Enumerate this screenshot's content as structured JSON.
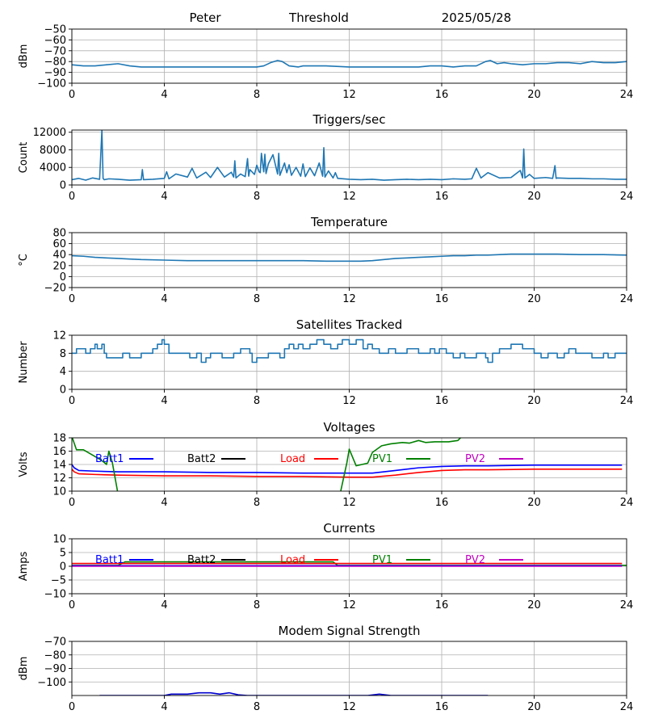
{
  "header": {
    "left": "Peter",
    "center": "Threshold",
    "right": "2025/05/28"
  },
  "chart_data": [
    {
      "id": "threshold",
      "type": "line",
      "title": "",
      "xlabel": "",
      "ylabel": "dBm",
      "xlim": [
        0,
        24
      ],
      "ylim": [
        -100,
        -50
      ],
      "xticks": [
        0,
        4,
        8,
        12,
        16,
        20,
        24
      ],
      "yticks": [
        -100,
        -90,
        -80,
        -70,
        -60,
        -50
      ],
      "ytick_labels": [
        "−100",
        "−90",
        "−80",
        "−70",
        "−60",
        "−50"
      ],
      "grid": true,
      "series": [
        {
          "color": "#1f77b4",
          "x": [
            0,
            0.5,
            1,
            1.5,
            2,
            2.5,
            3,
            4,
            5,
            6,
            7,
            8,
            8.3,
            8.6,
            8.9,
            9.1,
            9.4,
            9.8,
            10,
            11,
            12,
            13,
            14,
            15,
            15.5,
            16,
            16.5,
            17,
            17.5,
            17.9,
            18.1,
            18.4,
            18.7,
            19,
            19.5,
            20,
            20.5,
            21,
            21.5,
            22,
            22.5,
            23,
            23.5,
            24
          ],
          "y": [
            -83,
            -84,
            -84,
            -83,
            -82,
            -84,
            -85,
            -85,
            -85,
            -85,
            -85,
            -85,
            -84,
            -81,
            -79,
            -80,
            -84,
            -85,
            -84,
            -84,
            -85,
            -85,
            -85,
            -85,
            -84,
            -84,
            -85,
            -84,
            -84,
            -80,
            -79,
            -82,
            -81,
            -82,
            -83,
            -82,
            -82,
            -81,
            -81,
            -82,
            -80,
            -81,
            -81,
            -80
          ]
        }
      ]
    },
    {
      "id": "triggers",
      "type": "line",
      "title": "Triggers/sec",
      "xlabel": "",
      "ylabel": "Count",
      "xlim": [
        0,
        24
      ],
      "ylim": [
        0,
        12500
      ],
      "xticks": [
        0,
        4,
        8,
        12,
        16,
        20,
        24
      ],
      "yticks": [
        0,
        4000,
        8000,
        12000
      ],
      "ytick_labels": [
        "0",
        "4000",
        "8000",
        "12000"
      ],
      "grid": true,
      "series": [
        {
          "color": "#1f77b4",
          "x": [
            0,
            0.3,
            0.6,
            0.9,
            1.2,
            1.3,
            1.35,
            1.4,
            1.6,
            2,
            2.5,
            3,
            3.05,
            3.1,
            3.5,
            4,
            4.1,
            4.2,
            4.5,
            5,
            5.2,
            5.4,
            5.8,
            6,
            6.3,
            6.6,
            6.9,
            7,
            7.05,
            7.1,
            7.3,
            7.5,
            7.6,
            7.65,
            7.7,
            7.9,
            8,
            8.1,
            8.15,
            8.2,
            8.3,
            8.35,
            8.4,
            8.5,
            8.7,
            8.9,
            8.95,
            9.0,
            9.2,
            9.3,
            9.4,
            9.5,
            9.7,
            9.9,
            10,
            10.1,
            10.3,
            10.5,
            10.7,
            10.85,
            10.9,
            10.95,
            11.1,
            11.3,
            11.4,
            11.5,
            12,
            12.5,
            13,
            13.5,
            14,
            14.5,
            15,
            15.5,
            16,
            16.5,
            17,
            17.3,
            17.5,
            17.7,
            18,
            18.5,
            19,
            19.4,
            19.5,
            19.55,
            19.6,
            19.8,
            20,
            20.5,
            20.8,
            20.9,
            20.95,
            21,
            21.5,
            22,
            22.5,
            23,
            23.5,
            24
          ],
          "y": [
            1200,
            1500,
            1100,
            1600,
            1300,
            12500,
            1500,
            1200,
            1400,
            1300,
            1100,
            1200,
            3500,
            1200,
            1300,
            1500,
            3000,
            1400,
            2500,
            1800,
            3800,
            1600,
            2900,
            1700,
            4000,
            1800,
            2900,
            1800,
            5500,
            1600,
            2500,
            1900,
            6000,
            2000,
            3500,
            2400,
            4500,
            3000,
            2800,
            7200,
            3000,
            7000,
            2600,
            4800,
            6900,
            2500,
            7200,
            2200,
            5000,
            2800,
            4600,
            2200,
            4000,
            2000,
            4800,
            1900,
            3900,
            2100,
            5000,
            2000,
            8500,
            1800,
            3200,
            1600,
            2800,
            1500,
            1300,
            1200,
            1300,
            1100,
            1200,
            1300,
            1200,
            1300,
            1200,
            1400,
            1300,
            1400,
            3800,
            1600,
            2800,
            1600,
            1700,
            3300,
            1600,
            8200,
            1600,
            2400,
            1500,
            1700,
            1500,
            4400,
            1500,
            1600,
            1500,
            1500,
            1400,
            1400,
            1300,
            1300
          ]
        }
      ]
    },
    {
      "id": "temperature",
      "type": "line",
      "title": "Temperature",
      "xlabel": "",
      "ylabel": "°C",
      "xlim": [
        0,
        24
      ],
      "ylim": [
        -20,
        80
      ],
      "xticks": [
        0,
        4,
        8,
        12,
        16,
        20,
        24
      ],
      "yticks": [
        -20,
        0,
        20,
        40,
        60,
        80
      ],
      "ytick_labels": [
        "−20",
        "0",
        "20",
        "40",
        "60",
        "80"
      ],
      "grid": true,
      "series": [
        {
          "color": "#1f77b4",
          "x": [
            0,
            0.5,
            1,
            1.5,
            2,
            2.5,
            3,
            4,
            5,
            6,
            7,
            8,
            9,
            10,
            11,
            12,
            12.5,
            13,
            13.5,
            14,
            14.5,
            15,
            15.5,
            16,
            16.5,
            17,
            17.5,
            18,
            18.5,
            19,
            20,
            21,
            22,
            23,
            24
          ],
          "y": [
            38,
            37,
            35,
            34,
            33,
            32,
            31,
            30,
            29,
            29,
            29,
            29,
            29,
            29,
            28,
            28,
            28,
            29,
            31,
            33,
            34,
            35,
            36,
            37,
            38,
            38,
            39,
            39,
            40,
            41,
            41,
            41,
            40,
            40,
            39
          ]
        }
      ]
    },
    {
      "id": "satellites",
      "type": "line",
      "title": "Satellites Tracked",
      "xlabel": "",
      "ylabel": "Number",
      "xlim": [
        0,
        24
      ],
      "ylim": [
        0,
        12
      ],
      "xticks": [
        0,
        4,
        8,
        12,
        16,
        20,
        24
      ],
      "yticks": [
        0,
        4,
        8,
        12
      ],
      "ytick_labels": [
        "0",
        "4",
        "8",
        "12"
      ],
      "grid": true,
      "step": true,
      "series": [
        {
          "color": "#1f77b4",
          "x": [
            0,
            0.2,
            0.6,
            0.8,
            1.0,
            1.1,
            1.3,
            1.4,
            1.5,
            2.2,
            2.5,
            3.0,
            3.5,
            3.7,
            3.9,
            4.0,
            4.2,
            4.8,
            5.1,
            5.4,
            5.6,
            5.8,
            6.0,
            6.5,
            7.0,
            7.3,
            7.7,
            7.8,
            8.0,
            8.5,
            9.0,
            9.2,
            9.4,
            9.6,
            9.8,
            10.0,
            10.3,
            10.6,
            10.9,
            11.2,
            11.5,
            11.7,
            12.0,
            12.3,
            12.6,
            12.8,
            13.0,
            13.3,
            13.7,
            14.0,
            14.5,
            15.0,
            15.5,
            15.7,
            15.9,
            16.2,
            16.5,
            16.8,
            17.0,
            17.5,
            17.9,
            18.0,
            18.2,
            18.5,
            19.0,
            19.5,
            20.0,
            20.3,
            20.6,
            21.0,
            21.3,
            21.5,
            21.8,
            22.0,
            22.5,
            23.0,
            23.2,
            23.5,
            24
          ],
          "y": [
            8,
            9,
            8,
            9,
            10,
            9,
            10,
            8,
            7,
            8,
            7,
            8,
            9,
            10,
            11,
            10,
            8,
            8,
            7,
            8,
            6,
            7,
            8,
            7,
            8,
            9,
            8,
            6,
            7,
            8,
            7,
            9,
            10,
            9,
            10,
            9,
            10,
            11,
            10,
            9,
            10,
            11,
            10,
            11,
            9,
            10,
            9,
            8,
            9,
            8,
            9,
            8,
            9,
            8,
            9,
            8,
            7,
            8,
            7,
            8,
            7,
            6,
            8,
            9,
            10,
            9,
            8,
            7,
            8,
            7,
            8,
            9,
            8,
            8,
            7,
            8,
            7,
            8,
            8
          ]
        }
      ]
    },
    {
      "id": "voltages",
      "type": "line",
      "title": "Voltages",
      "xlabel": "",
      "ylabel": "Volts",
      "xlim": [
        0,
        24
      ],
      "ylim": [
        10,
        18
      ],
      "xticks": [
        0,
        4,
        8,
        12,
        16,
        20,
        24
      ],
      "yticks": [
        10,
        12,
        14,
        16,
        18
      ],
      "ytick_labels": [
        "10",
        "12",
        "14",
        "16",
        "18"
      ],
      "grid": true,
      "legend": [
        "Batt1",
        "Batt2",
        "Load",
        "PV1",
        "PV2"
      ],
      "legend_colors": [
        "#0000ff",
        "#000000",
        "#ff0000",
        "#008000",
        "#bf00bf"
      ],
      "series": [
        {
          "name": "Batt1",
          "color": "#0000ff",
          "x": [
            0,
            0.1,
            0.3,
            1,
            2,
            4,
            6,
            8,
            10,
            12,
            13,
            14,
            15,
            16,
            17,
            18,
            20,
            22,
            23.8
          ],
          "y": [
            14.0,
            13.5,
            13.1,
            13.0,
            12.9,
            12.9,
            12.8,
            12.8,
            12.7,
            12.7,
            12.7,
            13.1,
            13.5,
            13.7,
            13.8,
            13.8,
            13.9,
            13.9,
            13.9
          ]
        },
        {
          "name": "Load",
          "color": "#ff0000",
          "x": [
            0,
            0.1,
            0.3,
            1,
            2,
            4,
            6,
            8,
            10,
            12,
            13,
            14,
            15,
            16,
            17,
            18,
            20,
            22,
            23.8
          ],
          "y": [
            13.3,
            12.9,
            12.6,
            12.5,
            12.4,
            12.3,
            12.3,
            12.2,
            12.2,
            12.1,
            12.1,
            12.4,
            12.8,
            13.1,
            13.2,
            13.2,
            13.3,
            13.3,
            13.3
          ]
        },
        {
          "name": "PV1",
          "color": "#008000",
          "x": [
            0,
            0.2,
            0.5,
            1.2,
            1.4,
            1.5,
            1.6,
            1.75,
            2.0,
            11.6,
            11.9,
            12.0,
            12.3,
            12.8,
            13.0,
            13.4,
            13.8,
            14.3,
            14.6,
            15.0,
            15.3,
            15.7,
            16.0,
            16.3,
            16.7,
            16.9
          ],
          "y": [
            18.2,
            16.2,
            16.2,
            14.8,
            14.3,
            14.0,
            16.0,
            14.3,
            9.5,
            9.5,
            14.3,
            16.3,
            13.8,
            14.2,
            15.8,
            16.8,
            17.1,
            17.3,
            17.2,
            17.6,
            17.3,
            17.4,
            17.4,
            17.4,
            17.6,
            18.3
          ]
        },
        {
          "name": "PV2",
          "color": "#bf00bf",
          "x": [],
          "y": []
        },
        {
          "name": "Batt2",
          "color": "#000000",
          "x": [],
          "y": []
        }
      ]
    },
    {
      "id": "currents",
      "type": "line",
      "title": "Currents",
      "xlabel": "",
      "ylabel": "Amps",
      "xlim": [
        0,
        24
      ],
      "ylim": [
        -10,
        10
      ],
      "xticks": [
        0,
        4,
        8,
        12,
        16,
        20,
        24
      ],
      "yticks": [
        -10,
        -5,
        0,
        5,
        10
      ],
      "ytick_labels": [
        "−10",
        "−5",
        "0",
        "5",
        "10"
      ],
      "grid": true,
      "legend": [
        "Batt1",
        "Batt2",
        "Load",
        "PV1",
        "PV2"
      ],
      "legend_colors": [
        "#0000ff",
        "#000000",
        "#ff0000",
        "#008000",
        "#bf00bf"
      ],
      "series": [
        {
          "name": "PV1",
          "color": "#008000",
          "x": [
            0,
            2.0,
            2.3,
            4,
            6,
            8,
            10,
            11.3,
            11.5,
            24
          ],
          "y": [
            0.3,
            0.3,
            1.6,
            1.6,
            1.6,
            1.6,
            1.6,
            1.6,
            0.3,
            0.3
          ]
        },
        {
          "name": "Load",
          "color": "#ff0000",
          "x": [
            0,
            2,
            4,
            6,
            8,
            10,
            12,
            14,
            16,
            18,
            20,
            22,
            23.8
          ],
          "y": [
            1.0,
            1.0,
            1.0,
            1.0,
            1.0,
            1.0,
            1.0,
            1.0,
            1.0,
            1.0,
            1.0,
            1.0,
            1.0
          ]
        },
        {
          "name": "Batt1",
          "color": "#0000ff",
          "x": [
            0,
            4,
            8,
            12,
            16,
            20,
            23.8
          ],
          "y": [
            0.2,
            0.2,
            0.2,
            0.2,
            0.2,
            0.2,
            0.2
          ]
        },
        {
          "name": "PV2",
          "color": "#bf00bf",
          "x": [
            0,
            4,
            8,
            12,
            16,
            20,
            23.8
          ],
          "y": [
            0.0,
            0.0,
            0.0,
            0.0,
            0.0,
            0.0,
            0.0
          ]
        },
        {
          "name": "Batt2",
          "color": "#000000",
          "x": [],
          "y": []
        }
      ]
    },
    {
      "id": "modem",
      "type": "line",
      "title": "Modem Signal Strength",
      "xlabel": "",
      "ylabel": "dBm",
      "xlim": [
        0,
        24
      ],
      "ylim": [
        -110,
        -70
      ],
      "xticks": [
        0,
        4,
        8,
        12,
        16,
        20,
        24
      ],
      "yticks": [
        -100,
        -90,
        -80,
        -70
      ],
      "ytick_labels": [
        "−100",
        "−90",
        "−80",
        "−70"
      ],
      "grid": true,
      "series": [
        {
          "color": "#0000cd",
          "x": [
            1.2,
            4.0,
            4.3,
            5.0,
            5.5,
            6.0,
            6.4,
            6.8,
            7.2,
            7.6,
            11.5,
            12.8,
            13.3,
            13.8,
            18.0
          ],
          "y": [
            -110,
            -110,
            -109,
            -109,
            -108,
            -108,
            -109,
            -108,
            -109.5,
            -110,
            -110,
            -110,
            -109,
            -110,
            -110
          ]
        }
      ]
    }
  ]
}
